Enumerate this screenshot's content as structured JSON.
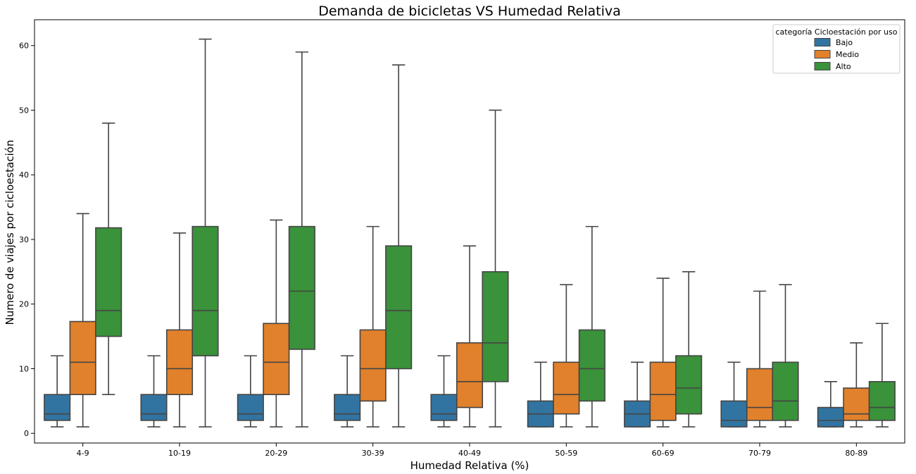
{
  "chart_data": {
    "type": "boxplot",
    "title": "Demanda de bicicletas VS Humedad Relativa",
    "xlabel": "Humedad Relativa (%)",
    "ylabel": "Numero de viajes por cicloestación",
    "ylim": [
      -1.5,
      64
    ],
    "yticks": [
      0,
      10,
      20,
      30,
      40,
      50,
      60
    ],
    "categories": [
      "4-9",
      "10-19",
      "20-29",
      "30-39",
      "40-49",
      "50-59",
      "60-69",
      "70-79",
      "80-89"
    ],
    "legend": {
      "title": "categoría Cicloestación por uso",
      "position": "top-right"
    },
    "series": [
      {
        "name": "Bajo",
        "color": "#3274a1",
        "boxes": [
          {
            "whisker_low": 1,
            "q1": 2,
            "median": 3,
            "q3": 6,
            "whisker_high": 12
          },
          {
            "whisker_low": 1,
            "q1": 2,
            "median": 3,
            "q3": 6,
            "whisker_high": 12
          },
          {
            "whisker_low": 1,
            "q1": 2,
            "median": 3,
            "q3": 6,
            "whisker_high": 12
          },
          {
            "whisker_low": 1,
            "q1": 2,
            "median": 3,
            "q3": 6,
            "whisker_high": 12
          },
          {
            "whisker_low": 1,
            "q1": 2,
            "median": 3,
            "q3": 6,
            "whisker_high": 12
          },
          {
            "whisker_low": 1,
            "q1": 1,
            "median": 3,
            "q3": 5,
            "whisker_high": 11
          },
          {
            "whisker_low": 1,
            "q1": 1,
            "median": 3,
            "q3": 5,
            "whisker_high": 11
          },
          {
            "whisker_low": 1,
            "q1": 1,
            "median": 2,
            "q3": 5,
            "whisker_high": 11
          },
          {
            "whisker_low": 1,
            "q1": 1,
            "median": 2,
            "q3": 4,
            "whisker_high": 8
          }
        ]
      },
      {
        "name": "Medio",
        "color": "#e1812c",
        "boxes": [
          {
            "whisker_low": 1,
            "q1": 6,
            "median": 11,
            "q3": 17.3,
            "whisker_high": 34
          },
          {
            "whisker_low": 1,
            "q1": 6,
            "median": 10,
            "q3": 16,
            "whisker_high": 31
          },
          {
            "whisker_low": 1,
            "q1": 6,
            "median": 11,
            "q3": 17,
            "whisker_high": 33
          },
          {
            "whisker_low": 1,
            "q1": 5,
            "median": 10,
            "q3": 16,
            "whisker_high": 32
          },
          {
            "whisker_low": 1,
            "q1": 4,
            "median": 8,
            "q3": 14,
            "whisker_high": 29
          },
          {
            "whisker_low": 1,
            "q1": 3,
            "median": 6,
            "q3": 11,
            "whisker_high": 23
          },
          {
            "whisker_low": 1,
            "q1": 2,
            "median": 6,
            "q3": 11,
            "whisker_high": 24
          },
          {
            "whisker_low": 1,
            "q1": 2,
            "median": 4,
            "q3": 10,
            "whisker_high": 22
          },
          {
            "whisker_low": 1,
            "q1": 2,
            "median": 3,
            "q3": 7,
            "whisker_high": 14
          }
        ]
      },
      {
        "name": "Alto",
        "color": "#3a923a",
        "boxes": [
          {
            "whisker_low": 6,
            "q1": 15,
            "median": 19,
            "q3": 31.8,
            "whisker_high": 48
          },
          {
            "whisker_low": 1,
            "q1": 12,
            "median": 19,
            "q3": 32,
            "whisker_high": 61
          },
          {
            "whisker_low": 1,
            "q1": 13,
            "median": 22,
            "q3": 32,
            "whisker_high": 59
          },
          {
            "whisker_low": 1,
            "q1": 10,
            "median": 19,
            "q3": 29,
            "whisker_high": 57
          },
          {
            "whisker_low": 1,
            "q1": 8,
            "median": 14,
            "q3": 25,
            "whisker_high": 50
          },
          {
            "whisker_low": 1,
            "q1": 5,
            "median": 10,
            "q3": 16,
            "whisker_high": 32
          },
          {
            "whisker_low": 1,
            "q1": 3,
            "median": 7,
            "q3": 12,
            "whisker_high": 25
          },
          {
            "whisker_low": 1,
            "q1": 2,
            "median": 5,
            "q3": 11,
            "whisker_high": 23
          },
          {
            "whisker_low": 1,
            "q1": 2,
            "median": 4,
            "q3": 8,
            "whisker_high": 17
          }
        ]
      }
    ]
  }
}
